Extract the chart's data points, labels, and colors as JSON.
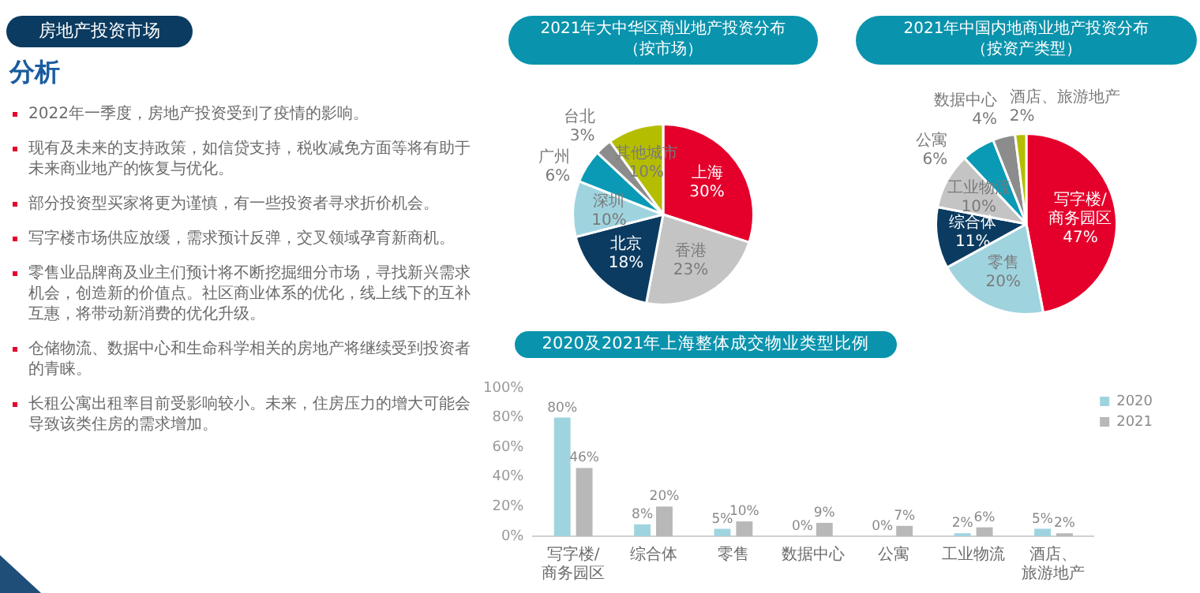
{
  "chart_data": [
    {
      "type": "other",
      "title": "房地产投资市场",
      "subtitle": "分析",
      "annotations": [
        "2022年一季度，房地产投资受到了疫情的影响。",
        "现有及未来的支持政策，如信贷支持，税收减免方面等将有助于未来商业地产的恢复与优化。",
        "部分投资型买家将更为谨慎，有一些投资者寻求折价机会。",
        "写字楼市场供应放缓，需求预计反弹，交叉领域孕育新商机。",
        "零售业品牌商及业主们预计将不断挖掘细分市场，寻找新兴需求机会，创造新的价值点。社区商业体系的优化，线上线下的互补互惠，将带动新消费的优化升级。",
        "仓储物流、数据中心和生命科学相关的房地产将继续受到投资者的青睐。",
        "长租公寓出租率目前受影响较小。未来，住房压力的增大可能会导致该类住房的需求增加。"
      ]
    },
    {
      "type": "pie",
      "title": "2021年大中华区商业地产投资分布（按市场）",
      "categories": [
        "上海",
        "香港",
        "北京",
        "深圳",
        "广州",
        "台北",
        "其他城市"
      ],
      "values": [
        30,
        23,
        18,
        10,
        6,
        3,
        10
      ],
      "value_labels": [
        "30%",
        "23%",
        "18%",
        "10%",
        "6%",
        "3%",
        "10%"
      ],
      "colors": [
        "#e4002b",
        "#c4c4c4",
        "#0b3b60",
        "#9fd4df",
        "#0a9ab5",
        "#8c8c8c",
        "#b5bd00"
      ]
    },
    {
      "type": "pie",
      "title": "2021年中国内地商业地产投资分布（按资产类型）",
      "categories": [
        "写字楼/商务园区",
        "零售",
        "综合体",
        "工业物流",
        "公寓",
        "数据中心",
        "酒店、旅游地产"
      ],
      "values": [
        47,
        20,
        11,
        10,
        6,
        4,
        2
      ],
      "value_labels": [
        "47%",
        "20%",
        "11%",
        "10%",
        "6%",
        "4%",
        "2%"
      ],
      "colors": [
        "#e4002b",
        "#9fd4df",
        "#0b3b60",
        "#c4c4c4",
        "#0a9ab5",
        "#8c8c8c",
        "#b5bd00"
      ]
    },
    {
      "type": "bar",
      "title": "2020及2021年上海整体成交物业类型比例",
      "categories": [
        "写字楼/商务园区",
        "综合体",
        "零售",
        "数据中心",
        "公寓",
        "工业物流",
        "酒店、旅游地产"
      ],
      "legend": "top right",
      "ylim": [
        0,
        100
      ],
      "yticks": [
        {
          "value": 0,
          "label": "0%"
        },
        {
          "value": 20,
          "label": "20%"
        },
        {
          "value": 40,
          "label": "40%"
        },
        {
          "value": 60,
          "label": "60%"
        },
        {
          "value": 80,
          "label": "80%"
        },
        {
          "value": 100,
          "label": "100%"
        }
      ],
      "series": [
        {
          "name": "2020",
          "color": "#9fd4df",
          "values": [
            80,
            8,
            5,
            0,
            0,
            2,
            5
          ],
          "value_labels": [
            "80%",
            "8%",
            "5%",
            "0%",
            "0%",
            "2%",
            "5%"
          ]
        },
        {
          "name": "2021",
          "color": "#b8b8b8",
          "values": [
            46,
            20,
            10,
            9,
            7,
            6,
            2
          ],
          "value_labels": [
            "46%",
            "20%",
            "10%",
            "9%",
            "7%",
            "6%",
            "2%"
          ]
        }
      ]
    }
  ]
}
